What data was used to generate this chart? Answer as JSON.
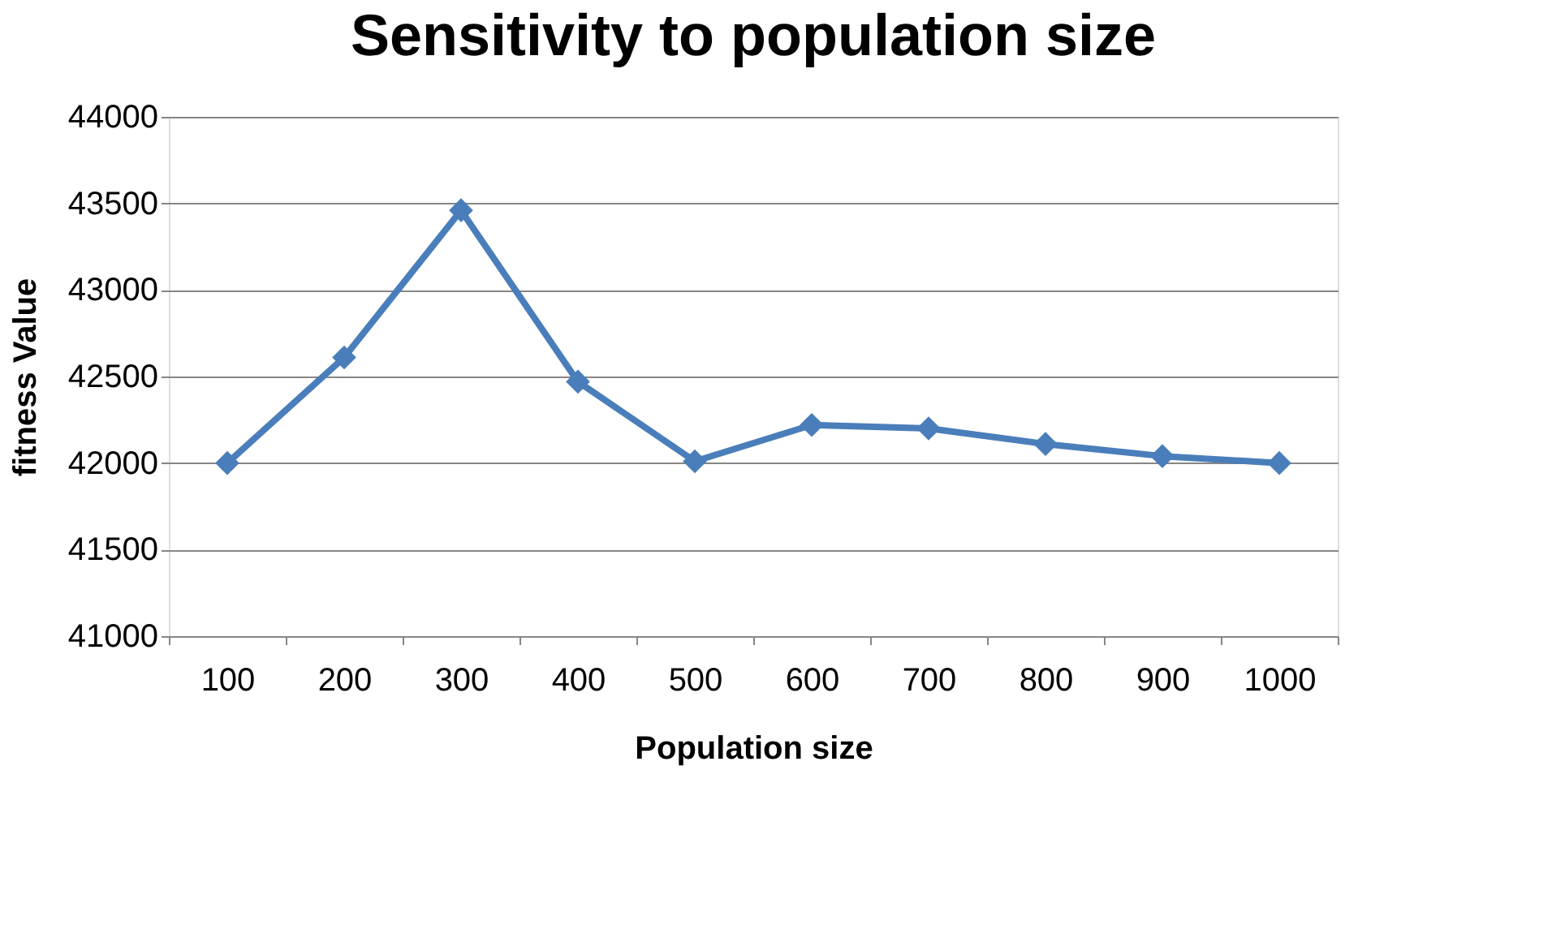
{
  "chart_data": {
    "type": "line",
    "title": "Sensitivity to population size",
    "xlabel": "Population size",
    "ylabel": "fitness Value",
    "categories": [
      "100",
      "200",
      "300",
      "400",
      "500",
      "600",
      "700",
      "800",
      "900",
      "1000"
    ],
    "series": [
      {
        "color": "#4a7ebb",
        "values": [
          42000,
          42610,
          43460,
          42470,
          42010,
          42220,
          42200,
          42110,
          42040,
          42000
        ]
      }
    ],
    "ylim": [
      41000,
      44000
    ],
    "yticks": [
      41000,
      41500,
      42000,
      42500,
      43000,
      43500,
      44000
    ],
    "grid": "y",
    "legend": false,
    "marker": "diamond",
    "line_style": "solid"
  }
}
